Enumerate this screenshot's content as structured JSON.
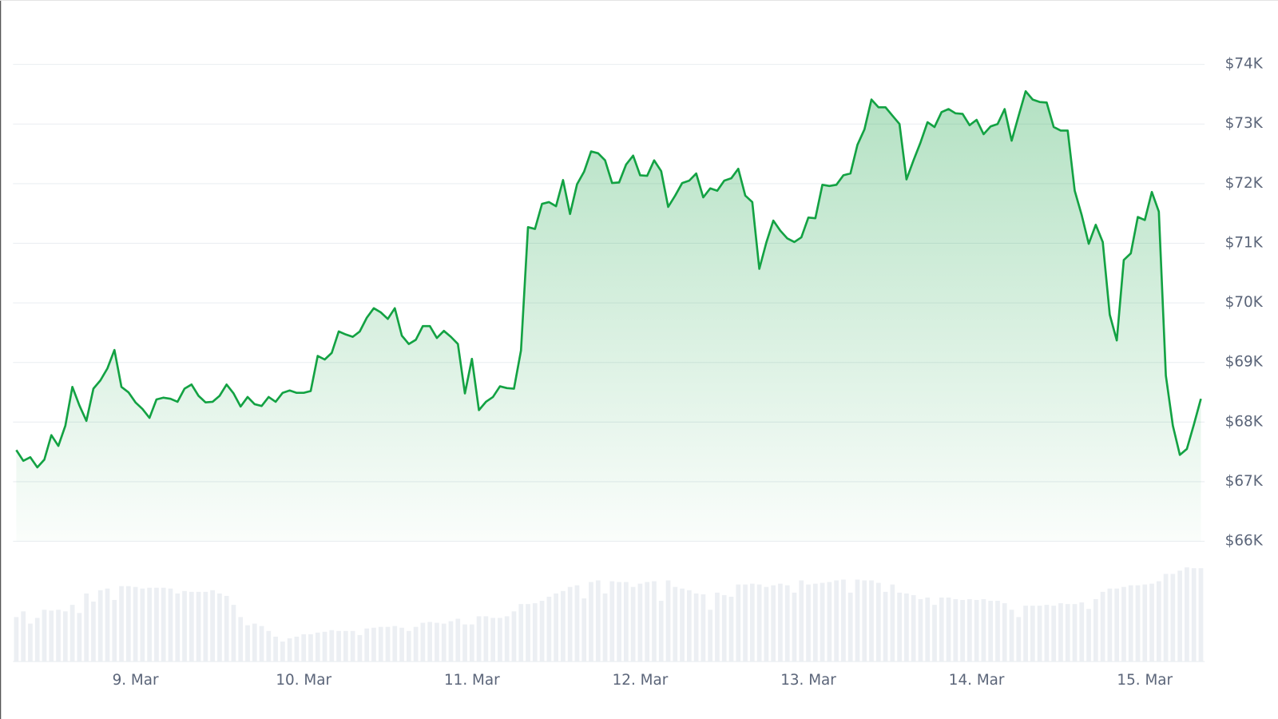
{
  "chart_data": [
    {
      "type": "area",
      "color": "#13a243",
      "ylim": [
        66000,
        74000
      ],
      "yticks": [
        {
          "value": 66000,
          "label": "$66K"
        },
        {
          "value": 67000,
          "label": "$67K"
        },
        {
          "value": 68000,
          "label": "$68K"
        },
        {
          "value": 69000,
          "label": "$69K"
        },
        {
          "value": 70000,
          "label": "$70K"
        },
        {
          "value": 71000,
          "label": "$71K"
        },
        {
          "value": 72000,
          "label": "$72K"
        },
        {
          "value": 73000,
          "label": "$73K"
        },
        {
          "value": 74000,
          "label": "$74K"
        }
      ],
      "grid": true,
      "categories": [
        null,
        null,
        null,
        null,
        null,
        null,
        null,
        null,
        null,
        null,
        null,
        null,
        null,
        null,
        null,
        null,
        null,
        "9. Mar",
        null,
        null,
        null,
        null,
        null,
        null,
        null,
        null,
        null,
        null,
        null,
        null,
        null,
        null,
        null,
        null,
        null,
        null,
        null,
        null,
        null,
        null,
        null,
        "10. Mar",
        null,
        null,
        null,
        null,
        null,
        null,
        null,
        null,
        null,
        null,
        null,
        null,
        null,
        null,
        null,
        null,
        null,
        null,
        null,
        null,
        null,
        null,
        null,
        "11. Mar",
        null,
        null,
        null,
        null,
        null,
        null,
        null,
        null,
        null,
        null,
        null,
        null,
        null,
        null,
        null,
        null,
        null,
        null,
        null,
        null,
        null,
        null,
        null,
        "12. Mar",
        null,
        null,
        null,
        null,
        null,
        null,
        null,
        null,
        null,
        null,
        null,
        null,
        null,
        null,
        null,
        null,
        null,
        null,
        null,
        null,
        null,
        null,
        null,
        "13. Mar",
        null,
        null,
        null,
        null,
        null,
        null,
        null,
        null,
        null,
        null,
        null,
        null,
        null,
        null,
        null,
        null,
        null,
        null,
        null,
        null,
        null,
        null,
        null,
        "14. Mar",
        null,
        null,
        null,
        null,
        null,
        null,
        null,
        null,
        null,
        null,
        null,
        null,
        null,
        null,
        null,
        null,
        null,
        null,
        null,
        null,
        null,
        null,
        null,
        "15. Mar",
        null,
        null,
        null,
        null,
        null,
        null,
        null,
        null
      ],
      "values": [
        67530,
        67350,
        67410,
        67240,
        67370,
        67780,
        67600,
        67940,
        68590,
        68280,
        68020,
        68560,
        68700,
        68900,
        69210,
        68590,
        68500,
        68330,
        68220,
        68070,
        68380,
        68410,
        68390,
        68340,
        68560,
        68630,
        68440,
        68330,
        68340,
        68440,
        68630,
        68480,
        68260,
        68420,
        68300,
        68270,
        68420,
        68340,
        68490,
        68530,
        68490,
        68490,
        68520,
        69110,
        69050,
        69160,
        69520,
        69470,
        69430,
        69520,
        69750,
        69910,
        69840,
        69730,
        69910,
        69450,
        69310,
        69380,
        69610,
        69610,
        69410,
        69530,
        69430,
        69310,
        68480,
        69060,
        68200,
        68340,
        68420,
        68600,
        68570,
        68560,
        69200,
        71270,
        71240,
        71660,
        71690,
        71620,
        72060,
        71490,
        71990,
        72200,
        72540,
        72510,
        72390,
        72010,
        72020,
        72320,
        72470,
        72140,
        72130,
        72390,
        72210,
        71610,
        71800,
        72010,
        72050,
        72170,
        71770,
        71920,
        71880,
        72050,
        72090,
        72250,
        71800,
        71690,
        70570,
        71010,
        71380,
        71210,
        71080,
        71020,
        71100,
        71430,
        71420,
        71980,
        71960,
        71980,
        72140,
        72170,
        72650,
        72910,
        73410,
        73280,
        73280,
        73140,
        73000,
        72070,
        72390,
        72690,
        73030,
        72950,
        73200,
        73250,
        73180,
        73170,
        72980,
        73070,
        72830,
        72960,
        73000,
        73250,
        72720,
        73140,
        73550,
        73410,
        73370,
        73360,
        72950,
        72890,
        72890,
        71880,
        71470,
        70990,
        71310,
        71020,
        69800,
        69370,
        70720,
        70830,
        71440,
        71390,
        71860,
        71530,
        68780,
        67940,
        67450,
        67550,
        67960,
        68390
      ]
    },
    {
      "type": "bar",
      "color": "#eceff3",
      "values": [
        54,
        61,
        46,
        53,
        63,
        62,
        63,
        61,
        69,
        59,
        83,
        73,
        87,
        89,
        75,
        92,
        92,
        91,
        89,
        90,
        90,
        90,
        89,
        83,
        86,
        85,
        85,
        85,
        87,
        83,
        80,
        69,
        54,
        44,
        46,
        43,
        37,
        30,
        24,
        28,
        30,
        33,
        33,
        35,
        36,
        38,
        37,
        37,
        37,
        32,
        40,
        41,
        42,
        42,
        43,
        41,
        37,
        42,
        47,
        48,
        47,
        46,
        49,
        52,
        45,
        45,
        55,
        55,
        53,
        53,
        55,
        61,
        70,
        70,
        71,
        74,
        79,
        83,
        86,
        91,
        93,
        77,
        97,
        99,
        83,
        98,
        97,
        97,
        91,
        95,
        97,
        98,
        74,
        99,
        91,
        89,
        87,
        83,
        82,
        63,
        84,
        81,
        79,
        94,
        94,
        95,
        94,
        91,
        93,
        95,
        93,
        84,
        99,
        94,
        95,
        96,
        97,
        99,
        100,
        84,
        100,
        99,
        99,
        96,
        85,
        94,
        84,
        83,
        81,
        76,
        78,
        69,
        78,
        78,
        76,
        75,
        76,
        75,
        76,
        74,
        74,
        71,
        63,
        54,
        68,
        68,
        68,
        69,
        68,
        71,
        70,
        70,
        72,
        64,
        76,
        85,
        89,
        89,
        91,
        93,
        93,
        94,
        95,
        98,
        107,
        107,
        111,
        115,
        114,
        114
      ]
    }
  ]
}
